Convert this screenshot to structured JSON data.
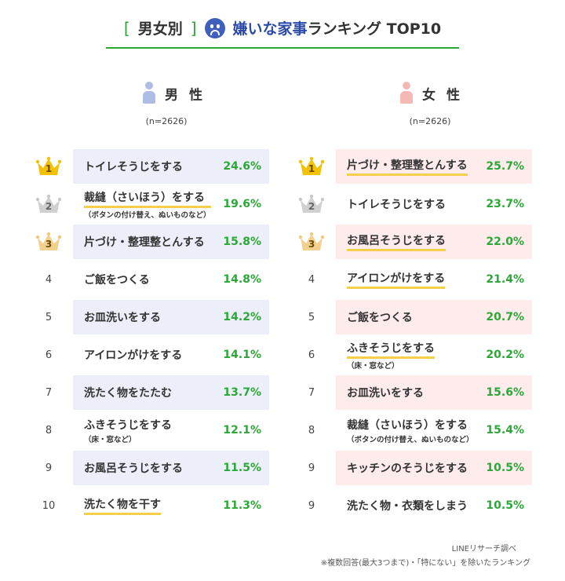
{
  "header": {
    "bracket_left": "[",
    "category": "男女別",
    "bracket_right": "]",
    "title_main": "嫌いな家事",
    "title_rest": "ランキング TOP10"
  },
  "male": {
    "label": "男 性",
    "n": "(n=2626)"
  },
  "female": {
    "label": "女 性",
    "n": "(n=2626)"
  },
  "chart_data": [
    {
      "type": "table",
      "title": "男 性",
      "rows": [
        {
          "rank": "1",
          "label": "トイレそうじをする",
          "sub": "",
          "value": "24.6%",
          "highlight": true,
          "underline": false
        },
        {
          "rank": "2",
          "label": "裁縫（さいほう）をする",
          "sub": "（ボタンの付け替え、ぬいものなど）",
          "value": "19.6%",
          "highlight": false,
          "underline": true
        },
        {
          "rank": "3",
          "label": "片づけ・整理整とんする",
          "sub": "",
          "value": "15.8%",
          "highlight": true,
          "underline": false
        },
        {
          "rank": "4",
          "label": "ご飯をつくる",
          "sub": "",
          "value": "14.8%",
          "highlight": false,
          "underline": false
        },
        {
          "rank": "5",
          "label": "お皿洗いをする",
          "sub": "",
          "value": "14.2%",
          "highlight": true,
          "underline": false
        },
        {
          "rank": "6",
          "label": "アイロンがけをする",
          "sub": "",
          "value": "14.1%",
          "highlight": false,
          "underline": false
        },
        {
          "rank": "7",
          "label": "洗たく物をたたむ",
          "sub": "",
          "value": "13.7%",
          "highlight": true,
          "underline": false
        },
        {
          "rank": "8",
          "label": "ふきそうじをする",
          "sub": "（床・窓など）",
          "value": "12.1%",
          "highlight": false,
          "underline": false
        },
        {
          "rank": "9",
          "label": "お風呂そうじをする",
          "sub": "",
          "value": "11.5%",
          "highlight": true,
          "underline": false
        },
        {
          "rank": "10",
          "label": "洗たく物を干す",
          "sub": "",
          "value": "11.3%",
          "highlight": false,
          "underline": true
        }
      ]
    },
    {
      "type": "table",
      "title": "女 性",
      "rows": [
        {
          "rank": "1",
          "label": "片づけ・整理整とんする",
          "sub": "",
          "value": "25.7%",
          "highlight": true,
          "underline": true
        },
        {
          "rank": "2",
          "label": "トイレそうじをする",
          "sub": "",
          "value": "23.7%",
          "highlight": false,
          "underline": false
        },
        {
          "rank": "3",
          "label": "お風呂そうじをする",
          "sub": "",
          "value": "22.0%",
          "highlight": true,
          "underline": true
        },
        {
          "rank": "4",
          "label": "アイロンがけをする",
          "sub": "",
          "value": "21.4%",
          "highlight": false,
          "underline": true
        },
        {
          "rank": "5",
          "label": "ご飯をつくる",
          "sub": "",
          "value": "20.7%",
          "highlight": true,
          "underline": false
        },
        {
          "rank": "6",
          "label": "ふきそうじをする",
          "sub": "（床・窓など）",
          "value": "20.2%",
          "highlight": false,
          "underline": true
        },
        {
          "rank": "7",
          "label": "お皿洗いをする",
          "sub": "",
          "value": "15.6%",
          "highlight": true,
          "underline": false
        },
        {
          "rank": "8",
          "label": "裁縫（さいほう）をする",
          "sub": "（ボタンの付け替え、ぬいものなど）",
          "value": "15.4%",
          "highlight": false,
          "underline": false
        },
        {
          "rank": "9",
          "label": "キッチンのそうじをする",
          "sub": "",
          "value": "10.5%",
          "highlight": true,
          "underline": false
        },
        {
          "rank": "9",
          "label": "洗たく物・衣類をしまう",
          "sub": "",
          "value": "10.5%",
          "highlight": false,
          "underline": false
        }
      ]
    }
  ],
  "footer": {
    "source": "LINEリサーチ調べ",
    "note": "※複数回答(最大3つまで)・「特にない」を除いたランキング"
  },
  "colors": {
    "accent_green": "#2aa836",
    "title_blue": "#2b4aa8",
    "male_highlight": "#eceff9",
    "female_highlight": "#fdeceb",
    "underline_yellow": "#f5cf4a",
    "gold": "#f2c200",
    "silver": "#c8c8c8",
    "bronze": "#f0c97a"
  },
  "icons": {
    "title": "sad-face-icon",
    "male": "male-person-icon",
    "female": "female-person-icon",
    "rank_top3": "crown-icon"
  }
}
